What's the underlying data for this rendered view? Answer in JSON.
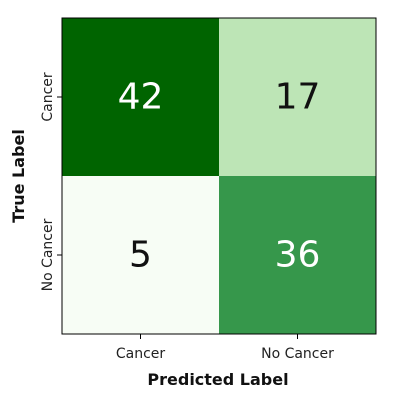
{
  "chart_data": {
    "type": "heatmap",
    "title": "",
    "xlabel": "Predicted Label",
    "ylabel": "True Label",
    "x_categories": [
      "Cancer",
      "No Cancer"
    ],
    "y_categories": [
      "Cancer",
      "No Cancer"
    ],
    "values": [
      [
        42,
        17
      ],
      [
        5,
        36
      ]
    ],
    "colorscale": {
      "min": 0,
      "max": 42,
      "low_color": "#ffffff",
      "high_color": "#006400"
    },
    "grid": false,
    "legend": "none"
  }
}
